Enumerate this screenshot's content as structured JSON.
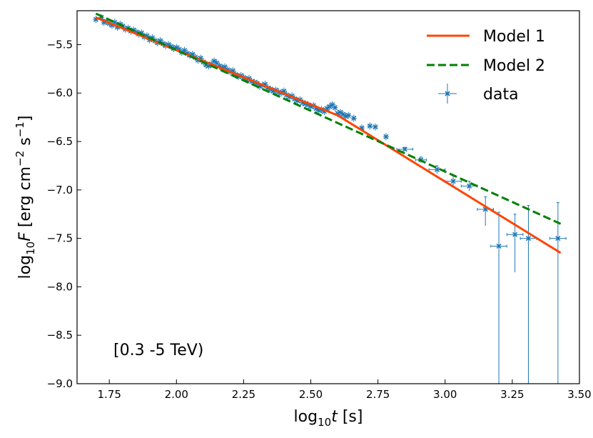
{
  "chart_data": {
    "type": "scatter",
    "title": "",
    "xlabel": {
      "prefix": "log",
      "sub": "10",
      "var": "t",
      "suffix": " [s]"
    },
    "ylabel": {
      "prefix": "log",
      "sub": "10",
      "var": "F",
      "mid": " [erg cm",
      "sup1": "−2",
      "mid2": " s",
      "sup2": "−1",
      "suffix": "]"
    },
    "xlim": [
      1.63,
      3.5
    ],
    "ylim": [
      -9.0,
      -5.15
    ],
    "xticks": [
      1.75,
      2.0,
      2.25,
      2.5,
      2.75,
      3.0,
      3.25,
      3.5
    ],
    "xtick_labels": [
      "1.75",
      "2.00",
      "2.25",
      "2.50",
      "2.75",
      "3.00",
      "3.25",
      "3.50"
    ],
    "yticks": [
      -5.5,
      -6.0,
      -6.5,
      -7.0,
      -7.5,
      -8.0,
      -8.5,
      -9.0
    ],
    "ytick_labels": [
      "−5.5",
      "−6.0",
      "−6.5",
      "−7.0",
      "−7.5",
      "−8.0",
      "−8.5",
      "−9.0"
    ],
    "annotation": "[0.3 -5 TeV)",
    "colors": {
      "model1": "#ff4500",
      "model2": "#008000",
      "data": "#1f77b4"
    },
    "series": [
      {
        "name": "Model 1",
        "style": "solid",
        "x": [
          1.7,
          2.6,
          3.43
        ],
        "y": [
          -5.22,
          -6.23,
          -7.65
        ]
      },
      {
        "name": "Model 2",
        "style": "dashed",
        "x": [
          1.7,
          3.43
        ],
        "y": [
          -5.18,
          -7.35
        ]
      },
      {
        "name": "data",
        "style": "errorbar",
        "points": [
          {
            "x": 1.7,
            "y": -5.24
          },
          {
            "x": 1.72,
            "y": -5.22
          },
          {
            "x": 1.73,
            "y": -5.27
          },
          {
            "x": 1.74,
            "y": -5.26
          },
          {
            "x": 1.75,
            "y": -5.28
          },
          {
            "x": 1.76,
            "y": -5.3
          },
          {
            "x": 1.77,
            "y": -5.27
          },
          {
            "x": 1.78,
            "y": -5.32
          },
          {
            "x": 1.79,
            "y": -5.29
          },
          {
            "x": 1.8,
            "y": -5.31
          },
          {
            "x": 1.81,
            "y": -5.34
          },
          {
            "x": 1.82,
            "y": -5.33
          },
          {
            "x": 1.83,
            "y": -5.36
          },
          {
            "x": 1.84,
            "y": -5.35
          },
          {
            "x": 1.85,
            "y": -5.37
          },
          {
            "x": 1.86,
            "y": -5.39
          },
          {
            "x": 1.87,
            "y": -5.38
          },
          {
            "x": 1.88,
            "y": -5.42
          },
          {
            "x": 1.89,
            "y": -5.41
          },
          {
            "x": 1.9,
            "y": -5.45
          },
          {
            "x": 1.91,
            "y": -5.43
          },
          {
            "x": 1.92,
            "y": -5.46
          },
          {
            "x": 1.93,
            "y": -5.48
          },
          {
            "x": 1.94,
            "y": -5.46
          },
          {
            "x": 1.95,
            "y": -5.49
          },
          {
            "x": 1.96,
            "y": -5.51
          },
          {
            "x": 1.97,
            "y": -5.5
          },
          {
            "x": 1.98,
            "y": -5.52
          },
          {
            "x": 1.99,
            "y": -5.54
          },
          {
            "x": 2.0,
            "y": -5.53
          },
          {
            "x": 2.01,
            "y": -5.55
          },
          {
            "x": 2.02,
            "y": -5.58
          },
          {
            "x": 2.03,
            "y": -5.56
          },
          {
            "x": 2.04,
            "y": -5.59
          },
          {
            "x": 2.05,
            "y": -5.61
          },
          {
            "x": 2.06,
            "y": -5.6
          },
          {
            "x": 2.07,
            "y": -5.63
          },
          {
            "x": 2.08,
            "y": -5.66
          },
          {
            "x": 2.09,
            "y": -5.64
          },
          {
            "x": 2.1,
            "y": -5.68
          },
          {
            "x": 2.11,
            "y": -5.71
          },
          {
            "x": 2.12,
            "y": -5.72
          },
          {
            "x": 2.13,
            "y": -5.7
          },
          {
            "x": 2.14,
            "y": -5.67
          },
          {
            "x": 2.15,
            "y": -5.69
          },
          {
            "x": 2.16,
            "y": -5.72
          },
          {
            "x": 2.17,
            "y": -5.74
          },
          {
            "x": 2.18,
            "y": -5.73
          },
          {
            "x": 2.19,
            "y": -5.76
          },
          {
            "x": 2.2,
            "y": -5.78
          },
          {
            "x": 2.21,
            "y": -5.77
          },
          {
            "x": 2.22,
            "y": -5.81
          },
          {
            "x": 2.23,
            "y": -5.83
          },
          {
            "x": 2.24,
            "y": -5.82
          },
          {
            "x": 2.25,
            "y": -5.84
          },
          {
            "x": 2.26,
            "y": -5.86
          },
          {
            "x": 2.27,
            "y": -5.85
          },
          {
            "x": 2.28,
            "y": -5.88
          },
          {
            "x": 2.29,
            "y": -5.89
          },
          {
            "x": 2.3,
            "y": -5.9
          },
          {
            "x": 2.31,
            "y": -5.93
          },
          {
            "x": 2.32,
            "y": -5.92
          },
          {
            "x": 2.33,
            "y": -5.91
          },
          {
            "x": 2.34,
            "y": -5.95
          },
          {
            "x": 2.35,
            "y": -5.96
          },
          {
            "x": 2.36,
            "y": -5.98
          },
          {
            "x": 2.37,
            "y": -5.97
          },
          {
            "x": 2.38,
            "y": -5.99
          },
          {
            "x": 2.39,
            "y": -6.0
          },
          {
            "x": 2.4,
            "y": -5.98
          },
          {
            "x": 2.41,
            "y": -6.02
          },
          {
            "x": 2.42,
            "y": -6.04
          },
          {
            "x": 2.43,
            "y": -6.03
          },
          {
            "x": 2.44,
            "y": -6.06
          },
          {
            "x": 2.45,
            "y": -6.08
          },
          {
            "x": 2.46,
            "y": -6.07
          },
          {
            "x": 2.47,
            "y": -6.1
          },
          {
            "x": 2.48,
            "y": -6.11
          },
          {
            "x": 2.49,
            "y": -6.12
          },
          {
            "x": 2.5,
            "y": -6.14
          },
          {
            "x": 2.51,
            "y": -6.13
          },
          {
            "x": 2.52,
            "y": -6.16
          },
          {
            "x": 2.53,
            "y": -6.18
          },
          {
            "x": 2.54,
            "y": -6.17
          },
          {
            "x": 2.55,
            "y": -6.19
          },
          {
            "x": 2.56,
            "y": -6.16
          },
          {
            "x": 2.57,
            "y": -6.14
          },
          {
            "x": 2.58,
            "y": -6.12
          },
          {
            "x": 2.59,
            "y": -6.15
          },
          {
            "x": 2.6,
            "y": -6.21
          },
          {
            "x": 2.61,
            "y": -6.2
          },
          {
            "x": 2.62,
            "y": -6.22
          },
          {
            "x": 2.63,
            "y": -6.24
          },
          {
            "x": 2.64,
            "y": -6.23
          },
          {
            "x": 2.66,
            "y": -6.26
          },
          {
            "x": 2.69,
            "y": -6.36
          },
          {
            "x": 2.72,
            "y": -6.34
          },
          {
            "x": 2.74,
            "y": -6.35
          },
          {
            "x": 2.78,
            "y": -6.45
          },
          {
            "x": 2.85,
            "y": -6.58
          },
          {
            "x": 2.91,
            "y": -6.69
          },
          {
            "x": 2.97,
            "y": -6.79
          },
          {
            "x": 3.03,
            "y": -6.91
          },
          {
            "x": 3.09,
            "y": -6.96
          },
          {
            "x": 3.15,
            "y": -7.2
          },
          {
            "x": 3.2,
            "y": -7.58
          },
          {
            "x": 3.26,
            "y": -7.46
          },
          {
            "x": 3.31,
            "y": -7.5
          },
          {
            "x": 3.42,
            "y": -7.5
          }
        ],
        "errorbars": [
          {
            "x": 2.85,
            "y": -6.58,
            "xerr": 0.03,
            "yerr_lo": 0.02,
            "yerr_hi": 0.02
          },
          {
            "x": 2.91,
            "y": -6.69,
            "xerr": 0.02,
            "yerr_lo": 0.03,
            "yerr_hi": 0.03
          },
          {
            "x": 2.97,
            "y": -6.79,
            "xerr": 0.03,
            "yerr_lo": 0.04,
            "yerr_hi": 0.04
          },
          {
            "x": 3.03,
            "y": -6.91,
            "xerr": 0.03,
            "yerr_lo": 0.07,
            "yerr_hi": 0.06
          },
          {
            "x": 3.09,
            "y": -6.96,
            "xerr": 0.03,
            "yerr_lo": 0.05,
            "yerr_hi": 0.05
          },
          {
            "x": 3.15,
            "y": -7.2,
            "xerr": 0.03,
            "yerr_lo": 0.17,
            "yerr_hi": 0.13
          },
          {
            "x": 3.2,
            "y": -7.58,
            "xerr": 0.03,
            "yerr_lo": 1.42,
            "yerr_hi": 0.35
          },
          {
            "x": 3.26,
            "y": -7.46,
            "xerr": 0.03,
            "yerr_lo": 0.39,
            "yerr_hi": 0.21
          },
          {
            "x": 3.31,
            "y": -7.5,
            "xerr": 0.03,
            "yerr_lo": 1.5,
            "yerr_hi": 0.34
          },
          {
            "x": 3.42,
            "y": -7.5,
            "xerr": 0.03,
            "yerr_lo": 1.5,
            "yerr_hi": 0.37
          }
        ]
      }
    ],
    "legend": {
      "position": "top-right",
      "entries": [
        "Model 1",
        "Model 2",
        "data"
      ]
    }
  }
}
